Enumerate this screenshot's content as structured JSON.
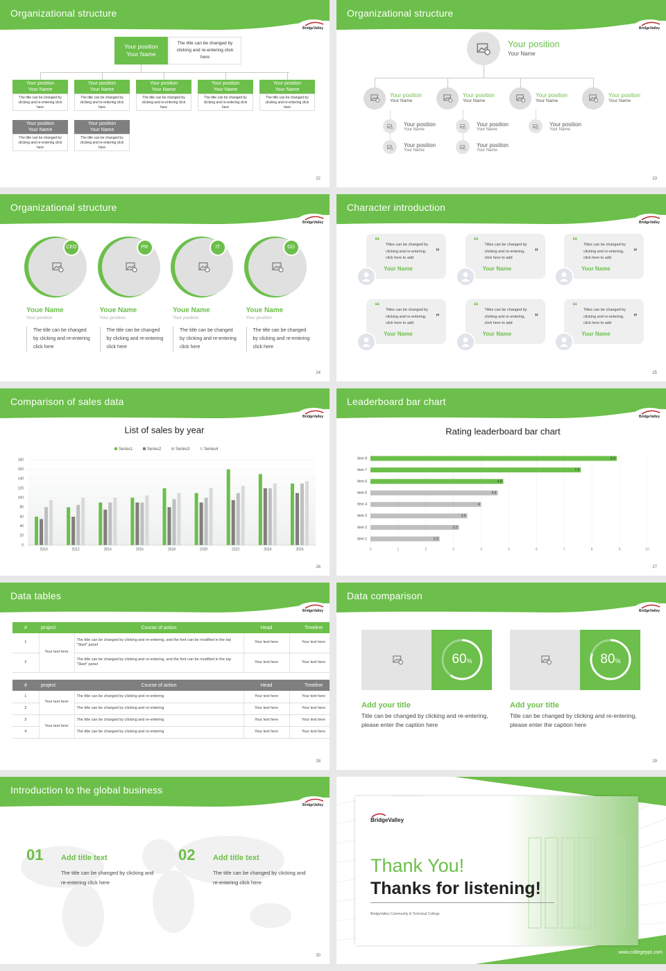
{
  "logo": "BridgeValley",
  "slides": [
    {
      "title": "Organizational structure",
      "page": "22",
      "top": {
        "position": "Your position",
        "name": "Your Name",
        "note": "The title can be changed by clicking and re-entering click here"
      },
      "row1": [
        {
          "position": "Your position",
          "name": "Your Name",
          "text": "The title can be changed by clicking and re-entering click here"
        },
        {
          "position": "Your position",
          "name": "Your Name",
          "text": "The title can be changed by clicking and re-entering click here"
        },
        {
          "position": "Your position",
          "name": "Your Name",
          "text": "The title can be changed by clicking and re-entering click here"
        },
        {
          "position": "Your position",
          "name": "Your Name",
          "text": "The title can be changed by clicking and re-entering click here"
        },
        {
          "position": "Your position",
          "name": "Your Name",
          "text": "The title can be changed by clicking and re-entering click here"
        }
      ],
      "row2": [
        {
          "position": "Your position",
          "name": "Your Name",
          "text": "The title can be changed by clicking and re-entering click here"
        },
        {
          "position": "Your position",
          "name": "Your Name",
          "text": "The title can be changed by clicking and re-entering click here"
        }
      ]
    },
    {
      "title": "Organizational structure",
      "page": "23",
      "top": {
        "position": "Your position",
        "name": "Your Name"
      },
      "members": [
        {
          "position": "Your position",
          "name": "Your Name",
          "subs": [
            {
              "position": "Your position",
              "name": "Your Name"
            },
            {
              "position": "Your position",
              "name": "Your Name"
            }
          ]
        },
        {
          "position": "Your position",
          "name": "Your Name",
          "subs": [
            {
              "position": "Your position",
              "name": "Your Name"
            },
            {
              "position": "Your position",
              "name": "Your Name"
            }
          ]
        },
        {
          "position": "Your position",
          "name": "Your Name",
          "subs": [
            {
              "position": "Your position",
              "name": "Your Name"
            }
          ]
        },
        {
          "position": "Your position",
          "name": "Your Name",
          "subs": []
        }
      ]
    },
    {
      "title": "Organizational structure",
      "page": "24",
      "people": [
        {
          "badge": "CEO",
          "name": "Youe Name",
          "position": "Your position",
          "text": "The title can be changed by clicking and re-entering click here"
        },
        {
          "badge": "PR",
          "name": "Youe Name",
          "position": "Your position",
          "text": "The title can be changed by clicking and re-entering click here"
        },
        {
          "badge": "IT",
          "name": "Youe Name",
          "position": "Your position",
          "text": "The title can be changed by clicking and re-entering click here"
        },
        {
          "badge": "GD",
          "name": "Youe Name",
          "position": "Your position",
          "text": "The title can be changed by clicking and re-entering click here"
        }
      ]
    },
    {
      "title": "Character introduction",
      "page": "25",
      "quote_open": "“",
      "quote_close": "”",
      "cards": [
        {
          "text": "Titles can be changed by clicking and re-entering, click here to add",
          "name": "Your Name"
        },
        {
          "text": "Titles can be changed by clicking and re-entering, click here to add",
          "name": "Your Name"
        },
        {
          "text": "Titles can be changed by clicking and re-entering, click here to add",
          "name": "Your Name"
        },
        {
          "text": "Titles can be changed by clicking and re-entering, click here to add",
          "name": "Your Name"
        },
        {
          "text": "Titles can be changed by clicking and re-entering, click here to add",
          "name": "Your Name"
        },
        {
          "text": "Titles can be changed by clicking and re-entering, click here to add",
          "name": "Your Name"
        }
      ]
    },
    {
      "title": "Comparison of sales data",
      "page": "26",
      "chart": {
        "type": "bar",
        "title": "List of sales by year",
        "categories": [
          "2010",
          "2012",
          "2014",
          "2016",
          "2018",
          "2020",
          "2022",
          "2024",
          "2026"
        ],
        "series": [
          {
            "name": "Series1",
            "color": "#6cbf4a",
            "values": [
              60,
              80,
              90,
              100,
              120,
              110,
              160,
              150,
              130
            ]
          },
          {
            "name": "Series2",
            "color": "#7f7f7f",
            "values": [
              55,
              60,
              75,
              90,
              80,
              90,
              95,
              120,
              110
            ]
          },
          {
            "name": "Series3",
            "color": "#bfbfbf",
            "values": [
              80,
              85,
              90,
              90,
              97,
              100,
              110,
              120,
              130
            ]
          },
          {
            "name": "Series4",
            "color": "#d9d9d9",
            "values": [
              95,
              100,
              100,
              105,
              110,
              120,
              125,
              130,
              135
            ]
          }
        ],
        "ylim": [
          0,
          180
        ],
        "yticks": [
          0,
          20,
          40,
          60,
          80,
          100,
          120,
          140,
          160,
          180
        ],
        "grid": true
      }
    },
    {
      "title": "Leaderboard bar chart",
      "page": "27",
      "chart": {
        "type": "bar",
        "orientation": "horizontal",
        "title": "Rating leaderboard bar chart",
        "categories": [
          "Item 1",
          "Item 2",
          "Item 3",
          "Item 4",
          "Item 5",
          "Item 6",
          "Item 7",
          "Item 8"
        ],
        "values": [
          2.5,
          3.2,
          3.5,
          4,
          4.6,
          4.8,
          7.6,
          8.9
        ],
        "colors": [
          "#bfbfbf",
          "#bfbfbf",
          "#bfbfbf",
          "#bfbfbf",
          "#bfbfbf",
          "#6cbf4a",
          "#6cbf4a",
          "#6cbf4a"
        ],
        "xlim": [
          0,
          10
        ],
        "xticks": [
          0,
          1,
          2,
          3,
          4,
          5,
          6,
          7,
          8,
          9,
          10
        ],
        "grid": true
      }
    },
    {
      "title": "Data tables",
      "page": "28",
      "tables": [
        {
          "header_color": "#6cbf4a",
          "columns": [
            "#",
            "project",
            "Course of action",
            "Head",
            "Timeline"
          ],
          "rows": [
            [
              "1",
              "Your text here",
              "The title can be changed by clicking and re-entering, and the font can be modified in the top \"Start\" panel",
              "Your text here",
              "Your text here"
            ],
            [
              "2",
              null,
              "The title can be changed by clicking and re-entering, and the font can be modified in the top \"Start\" panel",
              "Your text here",
              "Your text here"
            ]
          ]
        },
        {
          "header_color": "#7f7f7f",
          "columns": [
            "#",
            "project",
            "Course of action",
            "Head",
            "Timeline"
          ],
          "rows": [
            [
              "1",
              "Your text here",
              "The title can be changed by clicking and re-entering",
              "Your text here",
              "Your text here"
            ],
            [
              "2",
              null,
              "The title can be changed by clicking and re-entering",
              "Your text here",
              "Your text here"
            ],
            [
              "3",
              "Your text here",
              "The title can be changed by clicking and re-entering",
              "Your text here",
              "Your text here"
            ],
            [
              "4",
              null,
              "The title can be changed by clicking and re-entering",
              "Your text here",
              "Your text here"
            ]
          ]
        }
      ]
    },
    {
      "title": "Data comparison",
      "page": "29",
      "items": [
        {
          "value": 60,
          "unit": "%",
          "title": "Add your title",
          "text": "Title can be changed by clicking and re-entering, please enter the caption here"
        },
        {
          "value": 80,
          "unit": "%",
          "title": "Add your title",
          "text": "Title can be changed by clicking and re-entering, please enter the caption here"
        }
      ]
    },
    {
      "title": "Introduction to the global business",
      "page": "30",
      "items": [
        {
          "number": "01",
          "title": "Add title text",
          "text": "The title can be changed by clicking and re-entering click here"
        },
        {
          "number": "02",
          "title": "Add title text",
          "text": "The title can be changed by clicking and re-entering click here"
        }
      ]
    },
    {
      "thanks": "Thank You!",
      "subtitle": "Thanks for listening!",
      "college": "BridgeValley Community & Technical College",
      "website": "www.collegeppt.com"
    }
  ]
}
